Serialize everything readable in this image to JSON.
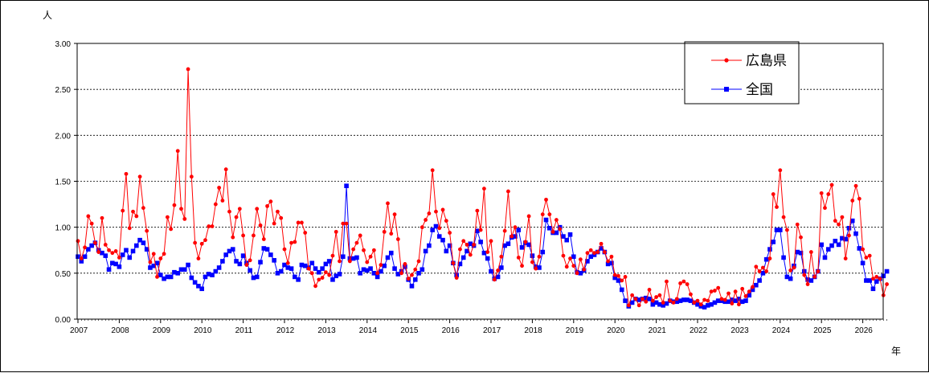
{
  "chart_data": {
    "type": "line",
    "y_unit_label": "人",
    "x_unit_label": "年",
    "ylim": [
      0,
      3.0
    ],
    "y_ticks": [
      "0.00",
      "0.50",
      "1.00",
      "1.50",
      "2.00",
      "2.50",
      "3.00"
    ],
    "x_ticks": [
      "2007",
      "2008",
      "2009",
      "2010",
      "2011",
      "2012",
      "2013",
      "2014",
      "2015",
      "2016",
      "2017",
      "2018",
      "2019",
      "2020",
      "2021",
      "2022",
      "2023",
      "2024",
      "2025",
      "2026"
    ],
    "x_start_year": 2007,
    "grid": "horizontal dotted",
    "legend_position": "top-right",
    "series": [
      {
        "name": "広島県",
        "color": "#ff0000",
        "marker": "circle",
        "values": [
          0.85,
          0.66,
          0.78,
          1.12,
          1.04,
          0.83,
          0.73,
          1.1,
          0.81,
          0.75,
          0.72,
          0.74,
          0.67,
          1.18,
          1.58,
          0.99,
          1.17,
          1.12,
          1.55,
          1.21,
          0.96,
          0.62,
          0.71,
          0.46,
          0.66,
          0.71,
          1.11,
          0.98,
          1.24,
          1.83,
          1.2,
          1.09,
          2.72,
          1.55,
          0.83,
          0.66,
          0.82,
          0.86,
          1.01,
          1.01,
          1.25,
          1.43,
          1.29,
          1.63,
          1.17,
          0.89,
          1.11,
          1.2,
          0.91,
          0.59,
          0.64,
          0.91,
          1.2,
          1.02,
          0.87,
          1.23,
          1.28,
          1.04,
          1.17,
          1.1,
          0.76,
          0.61,
          0.83,
          0.84,
          1.05,
          1.05,
          0.94,
          0.55,
          0.5,
          0.36,
          0.43,
          0.45,
          0.51,
          0.48,
          0.69,
          0.95,
          0.63,
          1.04,
          1.04,
          0.63,
          0.76,
          0.83,
          0.91,
          0.75,
          0.62,
          0.68,
          0.75,
          0.5,
          0.59,
          0.95,
          1.26,
          0.93,
          1.14,
          0.87,
          0.5,
          0.6,
          0.44,
          0.48,
          0.54,
          0.63,
          1.0,
          1.08,
          1.15,
          1.62,
          1.17,
          0.99,
          1.19,
          1.07,
          0.94,
          0.61,
          0.45,
          0.76,
          0.85,
          0.81,
          0.7,
          0.81,
          1.18,
          0.97,
          1.42,
          0.73,
          0.85,
          0.43,
          0.53,
          0.68,
          0.96,
          1.39,
          0.9,
          1.0,
          0.67,
          0.58,
          0.84,
          1.12,
          0.62,
          0.55,
          0.68,
          1.14,
          1.3,
          1.14,
          0.95,
          1.08,
          0.98,
          0.69,
          0.57,
          0.66,
          0.58,
          0.5,
          0.65,
          0.54,
          0.72,
          0.75,
          0.72,
          0.73,
          0.82,
          0.73,
          0.63,
          0.68,
          0.48,
          0.47,
          0.42,
          0.46,
          0.15,
          0.26,
          0.22,
          0.15,
          0.22,
          0.19,
          0.32,
          0.2,
          0.24,
          0.26,
          0.18,
          0.41,
          0.2,
          0.18,
          0.22,
          0.39,
          0.41,
          0.38,
          0.27,
          0.18,
          0.2,
          0.16,
          0.21,
          0.2,
          0.3,
          0.31,
          0.34,
          0.22,
          0.21,
          0.28,
          0.17,
          0.3,
          0.16,
          0.33,
          0.25,
          0.3,
          0.35,
          0.57,
          0.52,
          0.56,
          0.52,
          0.66,
          1.36,
          1.22,
          1.62,
          1.11,
          0.97,
          0.53,
          0.56,
          1.03,
          0.89,
          0.48,
          0.38,
          0.73,
          0.46,
          0.52,
          1.37,
          1.21,
          1.36,
          1.46,
          1.07,
          1.03,
          1.11,
          0.66,
          0.91,
          1.29,
          1.45,
          1.31,
          0.76,
          0.67,
          0.69,
          0.44,
          0.46,
          0.44,
          0.26,
          0.38
        ]
      },
      {
        "name": "全国",
        "color": "#0000ff",
        "marker": "square",
        "values": [
          0.68,
          0.63,
          0.68,
          0.76,
          0.8,
          0.83,
          0.75,
          0.72,
          0.69,
          0.54,
          0.61,
          0.6,
          0.57,
          0.7,
          0.75,
          0.67,
          0.74,
          0.8,
          0.86,
          0.83,
          0.76,
          0.56,
          0.58,
          0.61,
          0.48,
          0.44,
          0.46,
          0.46,
          0.51,
          0.5,
          0.54,
          0.54,
          0.59,
          0.45,
          0.4,
          0.36,
          0.33,
          0.46,
          0.49,
          0.48,
          0.52,
          0.56,
          0.63,
          0.7,
          0.74,
          0.76,
          0.63,
          0.6,
          0.69,
          0.61,
          0.53,
          0.45,
          0.46,
          0.62,
          0.77,
          0.76,
          0.7,
          0.64,
          0.5,
          0.52,
          0.59,
          0.56,
          0.55,
          0.46,
          0.43,
          0.59,
          0.58,
          0.56,
          0.61,
          0.55,
          0.51,
          0.55,
          0.6,
          0.63,
          0.43,
          0.47,
          0.49,
          0.68,
          1.45,
          0.66,
          0.66,
          0.67,
          0.5,
          0.54,
          0.53,
          0.55,
          0.5,
          0.46,
          0.52,
          0.58,
          0.67,
          0.72,
          0.55,
          0.49,
          0.52,
          0.57,
          0.43,
          0.36,
          0.43,
          0.5,
          0.54,
          0.74,
          0.8,
          0.97,
          1.01,
          0.9,
          0.86,
          0.74,
          0.8,
          0.61,
          0.48,
          0.6,
          0.67,
          0.74,
          0.82,
          0.8,
          0.96,
          0.84,
          0.72,
          0.66,
          0.52,
          0.44,
          0.46,
          0.56,
          0.8,
          0.82,
          0.89,
          0.9,
          0.97,
          0.78,
          0.83,
          0.81,
          0.69,
          0.57,
          0.56,
          0.73,
          1.08,
          0.99,
          0.94,
          0.94,
          1.0,
          0.9,
          0.86,
          0.92,
          0.68,
          0.51,
          0.5,
          0.53,
          0.63,
          0.68,
          0.7,
          0.73,
          0.77,
          0.73,
          0.6,
          0.61,
          0.45,
          0.42,
          0.32,
          0.2,
          0.14,
          0.18,
          0.22,
          0.21,
          0.22,
          0.23,
          0.22,
          0.16,
          0.18,
          0.16,
          0.15,
          0.17,
          0.2,
          0.19,
          0.19,
          0.2,
          0.21,
          0.21,
          0.2,
          0.18,
          0.16,
          0.14,
          0.13,
          0.15,
          0.16,
          0.18,
          0.2,
          0.2,
          0.19,
          0.19,
          0.21,
          0.2,
          0.22,
          0.19,
          0.2,
          0.26,
          0.32,
          0.37,
          0.42,
          0.5,
          0.65,
          0.76,
          0.84,
          0.97,
          0.97,
          0.67,
          0.46,
          0.44,
          0.58,
          0.73,
          0.72,
          0.52,
          0.43,
          0.42,
          0.46,
          0.52,
          0.81,
          0.67,
          0.76,
          0.8,
          0.85,
          0.81,
          0.88,
          0.87,
          0.99,
          1.07,
          0.93,
          0.77,
          0.61,
          0.42,
          0.42,
          0.33,
          0.41,
          0.44,
          0.47,
          0.52
        ]
      }
    ]
  }
}
